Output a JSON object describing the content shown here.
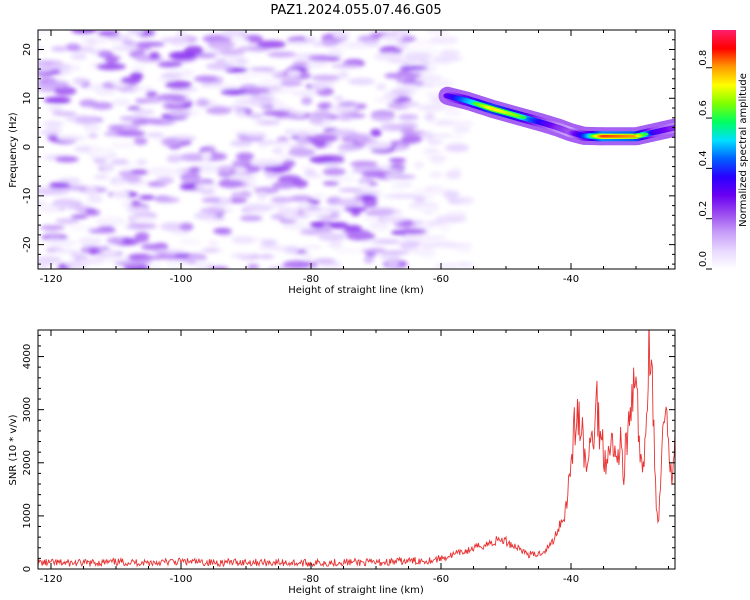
{
  "figure": {
    "title": "PAZ1.2024.055.07.46.G05"
  },
  "chart_data": [
    {
      "type": "heatmap",
      "xlabel": "Height of straight line (km)",
      "ylabel": "Frequency (Hz)",
      "xlim": [
        -122,
        -24
      ],
      "ylim": [
        -25,
        24
      ],
      "xticks": [
        -120,
        -100,
        -80,
        -60,
        -40
      ],
      "yticks": [
        20,
        10,
        0,
        -10,
        -20
      ],
      "colorbar": {
        "label": "Normalized spectral amplitude",
        "range": [
          0,
          0.95
        ],
        "ticks": [
          0.0,
          0.2,
          0.4,
          0.6,
          0.8
        ],
        "colormap": [
          "#ffffff",
          "#e8d8ff",
          "#c69cf8",
          "#9b4cf0",
          "#6a00f2",
          "#2a00ff",
          "#0060ff",
          "#00e0ff",
          "#00ff60",
          "#7fff00",
          "#ffff00",
          "#ff9900",
          "#ff0000",
          "#ff1f6d"
        ]
      },
      "ridge": {
        "x": [
          -59,
          -56,
          -52,
          -48,
          -45,
          -42,
          -40,
          -38,
          -35,
          -30,
          -27,
          -24
        ],
        "y": [
          10.5,
          9.5,
          7.8,
          6.3,
          5.2,
          4.0,
          3.0,
          2.3,
          2.2,
          2.2,
          3.1,
          4.0
        ],
        "amplitude": [
          0.35,
          0.55,
          0.75,
          0.65,
          0.45,
          0.3,
          0.25,
          0.45,
          0.85,
          0.8,
          0.4,
          0.3
        ]
      }
    },
    {
      "type": "line",
      "xlabel": "Height of straight line (km)",
      "ylabel": "SNR (10 * v/v)",
      "xlim": [
        -122,
        -24
      ],
      "ylim": [
        0,
        4500
      ],
      "xticks": [
        -120,
        -100,
        -80,
        -60,
        -40
      ],
      "yticks": [
        0,
        1000,
        2000,
        3000,
        4000
      ],
      "line_color": "#e83232",
      "series": [
        {
          "x": [
            -122,
            -115,
            -110,
            -105,
            -100,
            -95,
            -90,
            -85,
            -80,
            -75,
            -70,
            -65,
            -62,
            -60,
            -58,
            -56,
            -54,
            -52,
            -51,
            -50,
            -49,
            -48,
            -47,
            -46,
            -45,
            -44,
            -43,
            -42.5,
            -42,
            -41.5,
            -41,
            -40.5,
            -40,
            -39.5,
            -39,
            -38.5,
            -38,
            -37.5,
            -37,
            -36.5,
            -36,
            -35.5,
            -35,
            -34.5,
            -34,
            -33.5,
            -33,
            -32.5,
            -32,
            -31.5,
            -31,
            -30.5,
            -30,
            -29.5,
            -29,
            -28.5,
            -28,
            -27.5,
            -27,
            -26.5,
            -26,
            -25.5,
            -25,
            -24.5,
            -24
          ],
          "y": [
            120,
            110,
            130,
            120,
            140,
            120,
            130,
            120,
            110,
            130,
            120,
            150,
            160,
            200,
            270,
            340,
            430,
            500,
            560,
            520,
            450,
            400,
            300,
            260,
            280,
            350,
            480,
            600,
            780,
            900,
            1050,
            1400,
            2100,
            2600,
            2900,
            2700,
            2200,
            1900,
            2300,
            2600,
            3150,
            2500,
            2300,
            2000,
            2600,
            2200,
            2000,
            2500,
            1800,
            2300,
            2700,
            3300,
            3400,
            2400,
            1600,
            2500,
            4450,
            3600,
            1500,
            800,
            2300,
            2900,
            2200,
            1800,
            2600
          ]
        }
      ]
    }
  ]
}
